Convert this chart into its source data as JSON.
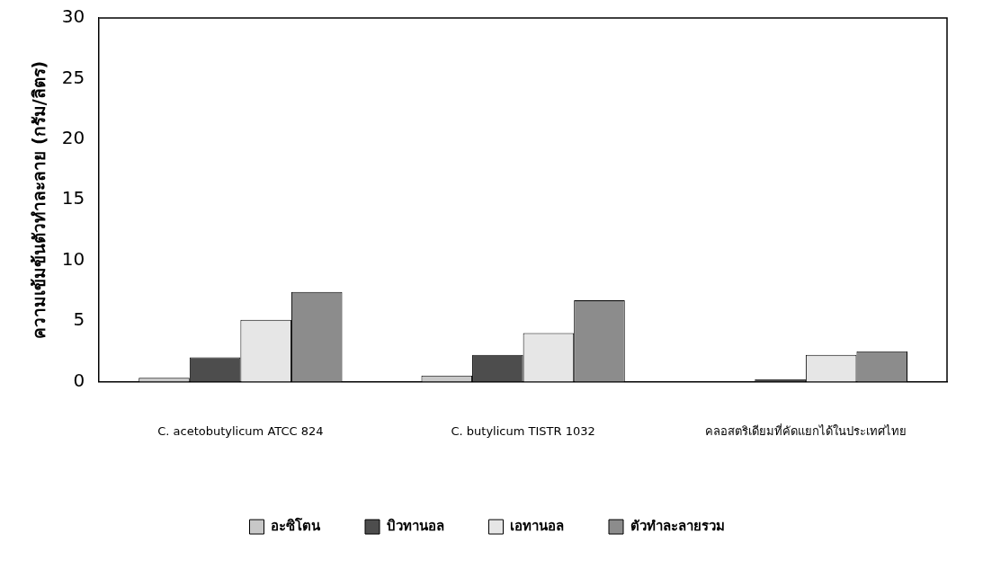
{
  "chart_data": {
    "type": "bar",
    "ylabel": "ความเข้มข้นตัวทำละลาย (กรัม/ลิตร)",
    "categories": [
      "C. acetobutylicum ATCC 824",
      "C. butylicum TISTR 1032",
      "คลอสตริเดียมที่คัดแยกได้ในประเทศไทย"
    ],
    "series": [
      {
        "name": "อะซิโตน",
        "color": "#c8c8c8",
        "values": [
          0.3,
          0.5,
          0
        ]
      },
      {
        "name": "บิวทานอล",
        "color": "#4d4d4d",
        "values": [
          2.0,
          2.2,
          0.2
        ]
      },
      {
        "name": "เอทานอล",
        "color": "#e6e6e6",
        "values": [
          5.1,
          4.0,
          2.2
        ]
      },
      {
        "name": "ตัวทำละลายรวม",
        "color": "#8c8c8c",
        "values": [
          7.4,
          6.7,
          2.5
        ]
      }
    ],
    "ylim": [
      0,
      30
    ],
    "yticks": [
      0,
      5,
      10,
      15,
      20,
      25,
      30
    ],
    "grid": false,
    "legend": "bottom"
  }
}
